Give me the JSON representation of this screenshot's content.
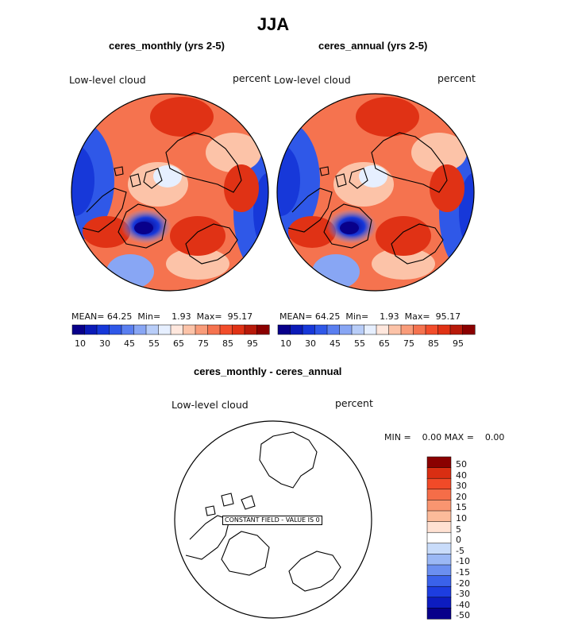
{
  "page_title": "JJA",
  "colors": {
    "seq": [
      "#08008a",
      "#0b1bb8",
      "#1738d9",
      "#2f58e8",
      "#5a7ff0",
      "#88a6f4",
      "#b8cdf8",
      "#e6efff",
      "#ffe7dd",
      "#fcc3a8",
      "#f99c7a",
      "#f5734f",
      "#f24d2b",
      "#e03215",
      "#b81a0a",
      "#8a0000"
    ],
    "diff": [
      "#08008a",
      "#0d1cc0",
      "#1d3de0",
      "#3a62ea",
      "#6b8ff0",
      "#9bb8f5",
      "#c9dcfa",
      "#ffffff",
      "#ffe1d2",
      "#fcbb9a",
      "#f99570",
      "#f56d48",
      "#f14a28",
      "#d92e12",
      "#8a0000"
    ],
    "line": "#000000"
  },
  "panels": [
    {
      "subtitle": "ceres_monthly (yrs 2-5)",
      "variable_label": "Low-level cloud",
      "units_label": "percent",
      "stats": {
        "mean_label": "MEAN=",
        "mean": "64.25",
        "min_label": "Min=",
        "min": "1.93",
        "max_label": "Max=",
        "max": "95.17"
      },
      "colorbar_ticks": [
        "10",
        "30",
        "45",
        "55",
        "65",
        "75",
        "85",
        "95"
      ]
    },
    {
      "subtitle": "ceres_annual (yrs 2-5)",
      "variable_label": "Low-level cloud",
      "units_label": "percent",
      "stats": {
        "mean_label": "MEAN=",
        "mean": "64.25",
        "min_label": "Min=",
        "min": "1.93",
        "max_label": "Max=",
        "max": "95.17"
      },
      "colorbar_ticks": [
        "10",
        "30",
        "45",
        "55",
        "65",
        "75",
        "85",
        "95"
      ]
    }
  ],
  "diff_panel": {
    "subtitle": "ceres_monthly - ceres_annual",
    "variable_label": "Low-level cloud",
    "units_label": "percent",
    "minmax_text": "MIN =    0.00 MAX =    0.00",
    "constant_field_label": "CONSTANT FIELD - VALUE IS  0",
    "colorbar_ticks": [
      "50",
      "40",
      "30",
      "20",
      "15",
      "10",
      "5",
      "0",
      "-5",
      "-10",
      "-15",
      "-20",
      "-30",
      "-40",
      "-50"
    ]
  },
  "chart_data": [
    {
      "type": "heatmap",
      "title": "ceres_monthly (yrs 2-5)",
      "projection": "north polar stereographic",
      "variable": "Low-level cloud",
      "units": "percent",
      "mean": 64.25,
      "min": 1.93,
      "max": 95.17,
      "levels": [
        10,
        30,
        45,
        55,
        65,
        75,
        85,
        95
      ]
    },
    {
      "type": "heatmap",
      "title": "ceres_annual (yrs 2-5)",
      "projection": "north polar stereographic",
      "variable": "Low-level cloud",
      "units": "percent",
      "mean": 64.25,
      "min": 1.93,
      "max": 95.17,
      "levels": [
        10,
        30,
        45,
        55,
        65,
        75,
        85,
        95
      ]
    },
    {
      "type": "heatmap",
      "title": "ceres_monthly - ceres_annual",
      "projection": "north polar stereographic",
      "variable": "Low-level cloud",
      "units": "percent",
      "min": 0.0,
      "max": 0.0,
      "constant_value": 0,
      "levels": [
        -50,
        -40,
        -30,
        -20,
        -15,
        -10,
        -5,
        0,
        5,
        10,
        15,
        20,
        30,
        40,
        50
      ]
    }
  ]
}
